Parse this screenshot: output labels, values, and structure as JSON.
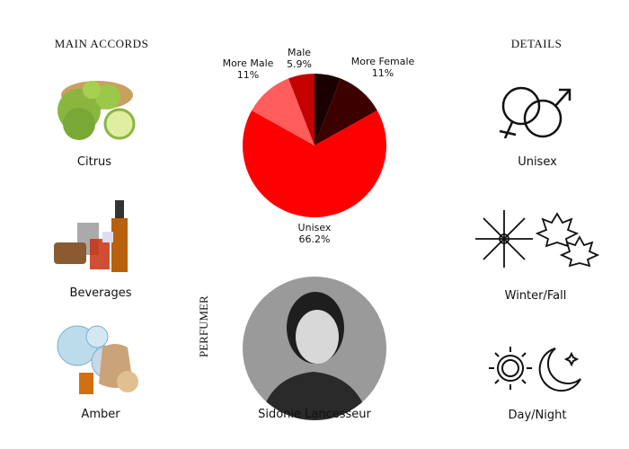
{
  "accords": {
    "heading": "MAIN ACCORDS",
    "items": [
      {
        "label": "Citrus",
        "icon": "bergamot-fruit-image"
      },
      {
        "label": "Beverages",
        "icon": "liquor-bottles-image"
      },
      {
        "label": "Amber",
        "icon": "amber-resin-image"
      }
    ]
  },
  "details": {
    "heading": "DETAILS",
    "items": [
      {
        "label": "Unisex",
        "icon": "gender-symbols-icon"
      },
      {
        "label": "Winter/Fall",
        "icon": "snowflake-leaf-icon"
      },
      {
        "label": "Day/Night",
        "icon": "sun-moon-icon"
      }
    ]
  },
  "perfumer": {
    "heading": "PERFUMER",
    "name": "Sidonie Lancesseur",
    "photo": "perfumer-portrait-photo"
  },
  "chart_data": {
    "type": "pie",
    "start": "top",
    "direction": "clockwise",
    "slices": [
      {
        "name": "",
        "value": 5.9,
        "label": "",
        "color": "#1a0000"
      },
      {
        "name": "More Female",
        "value": 11,
        "label": "11%",
        "color": "#3d0000"
      },
      {
        "name": "Unisex",
        "value": 66.2,
        "label": "66.2%",
        "color": "#ff0000"
      },
      {
        "name": "More Male",
        "value": 11,
        "label": "11%",
        "color": "#ff5c5c"
      },
      {
        "name": "Male",
        "value": 5.9,
        "label": "5.9%",
        "color": "#c40000"
      }
    ]
  }
}
